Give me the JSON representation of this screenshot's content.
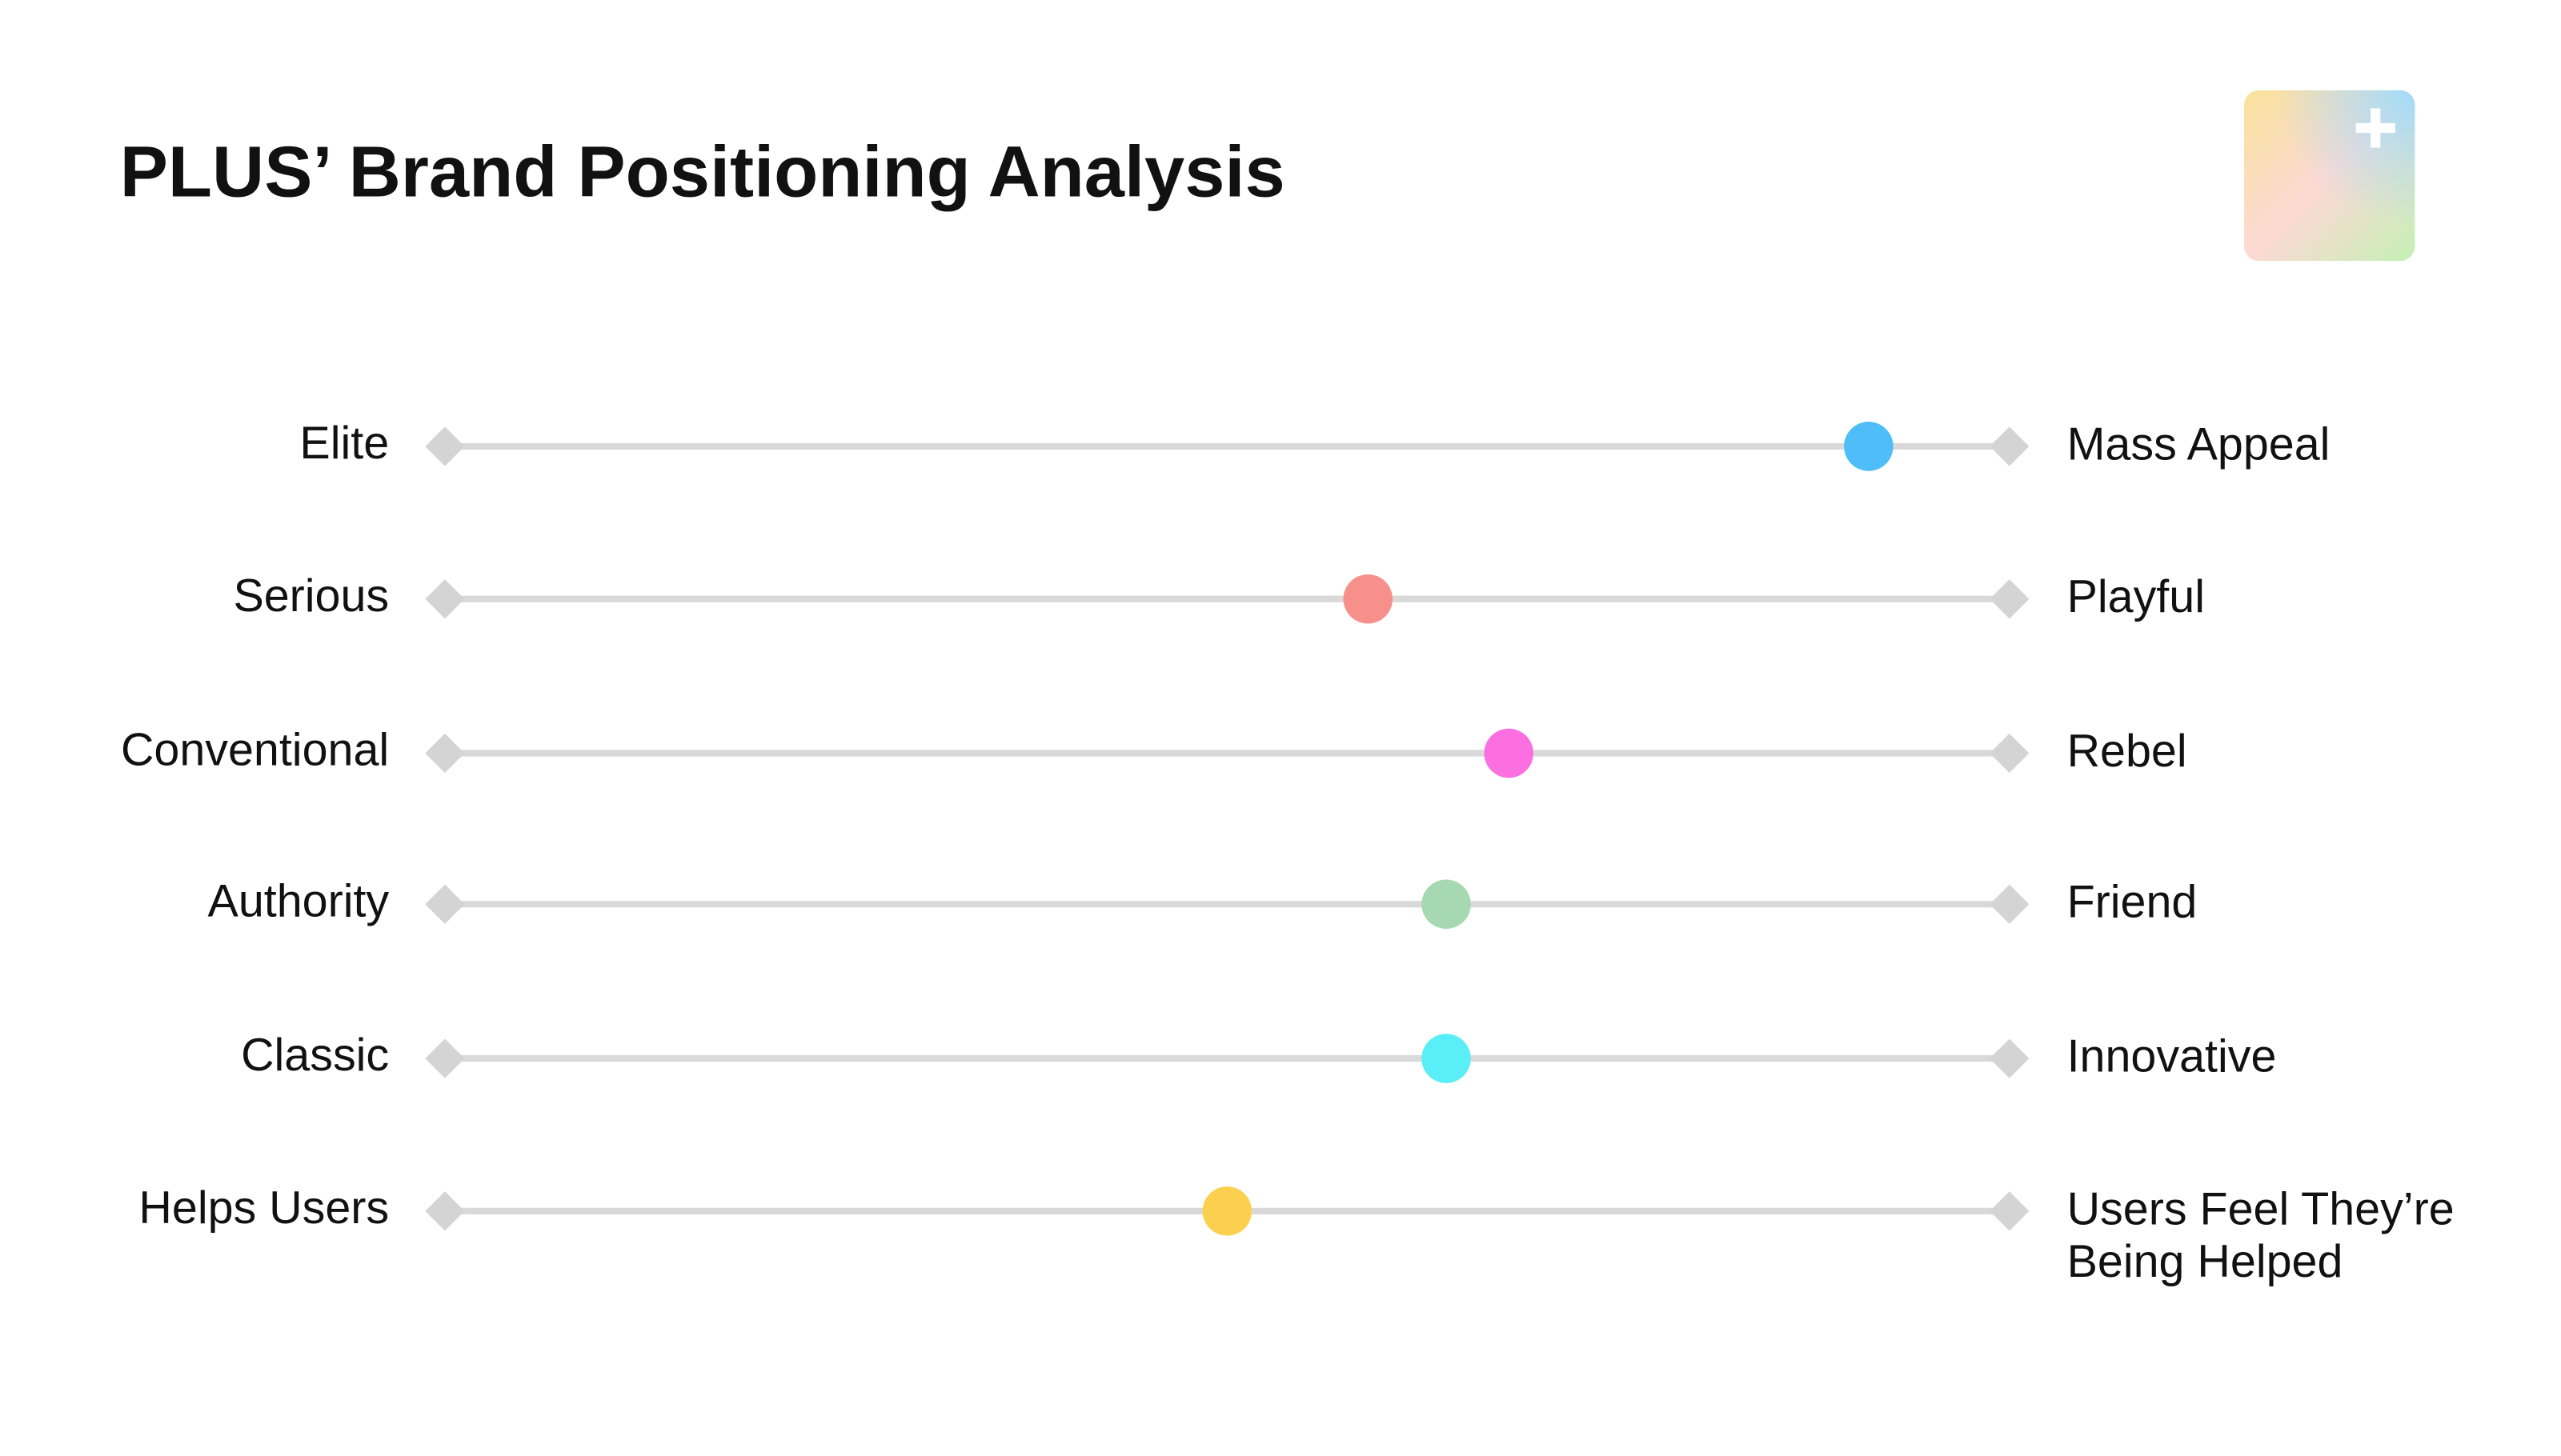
{
  "chart_data": {
    "type": "slider",
    "title": "PLUS’ Brand Positioning Analysis",
    "left_labels": [
      "Elite",
      "Serious",
      "Conventional",
      "Authority",
      "Classic",
      "Helps Users"
    ],
    "right_labels": [
      "Mass Appeal",
      "Playful",
      "Rebel",
      "Friend",
      "Innovative",
      "Users Feel They’re Being Helped"
    ],
    "values": [
      91,
      59,
      68,
      64,
      64,
      50
    ],
    "colors": [
      "#4fbdf7",
      "#f78f8a",
      "#fb6fe0",
      "#a6d8b1",
      "#5aeef6",
      "#fcd04f"
    ],
    "xlim": [
      0,
      100
    ]
  }
}
